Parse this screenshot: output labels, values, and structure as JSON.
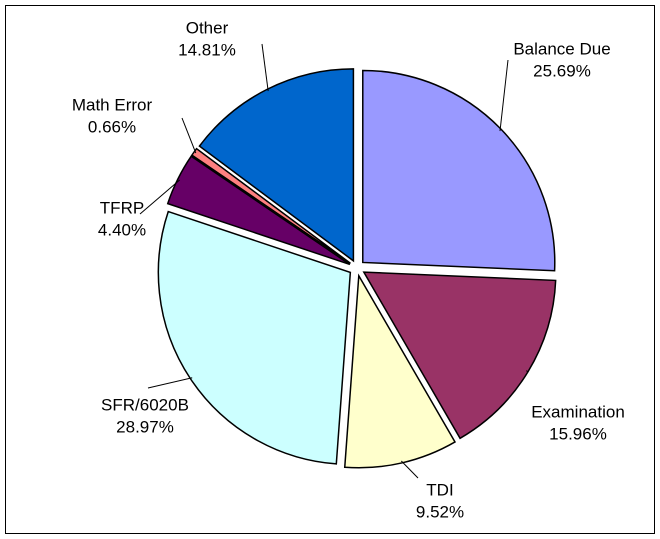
{
  "chart_data": {
    "type": "pie",
    "categories": [
      "Balance Due",
      "Examination",
      "TDI",
      "SFR/6020B",
      "TFRP",
      "Math Error",
      "Other"
    ],
    "values": [
      25.69,
      15.96,
      9.52,
      28.97,
      4.4,
      0.66,
      14.81
    ],
    "value_labels": [
      "25.69%",
      "15.96%",
      "9.52%",
      "28.97%",
      "4.40%",
      "0.66%",
      "14.81%"
    ],
    "colors": [
      "#9999ff",
      "#993366",
      "#ffffcc",
      "#ccffff",
      "#660066",
      "#ff8080",
      "#0066cc"
    ]
  }
}
